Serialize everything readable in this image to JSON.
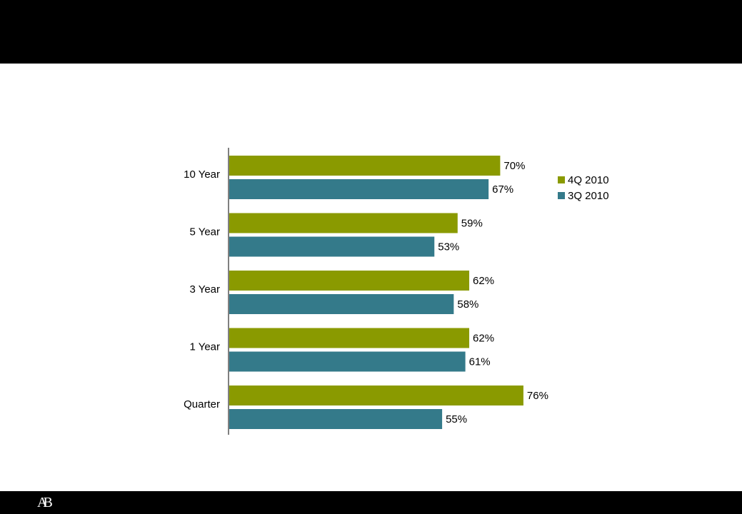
{
  "logo": {
    "text": "AB"
  },
  "colors": {
    "series_4q": "#8a9a00",
    "series_3q": "#347a8a",
    "bars": "#000000"
  },
  "chart_data": {
    "type": "bar",
    "orientation": "horizontal",
    "categories": [
      "10 Year",
      "5 Year",
      "3 Year",
      "1 Year",
      "Quarter"
    ],
    "series": [
      {
        "name": "4Q 2010",
        "values": [
          70,
          59,
          62,
          62,
          76
        ],
        "labels": [
          "70%",
          "59%",
          "62%",
          "62%",
          "76%"
        ],
        "color": "#8a9a00"
      },
      {
        "name": "3Q 2010",
        "values": [
          67,
          53,
          58,
          61,
          55
        ],
        "labels": [
          "67%",
          "53%",
          "58%",
          "61%",
          "55%"
        ],
        "color": "#347a8a"
      }
    ],
    "xlim": [
      0,
      100
    ],
    "grid": false,
    "legend_position": "top-right"
  }
}
